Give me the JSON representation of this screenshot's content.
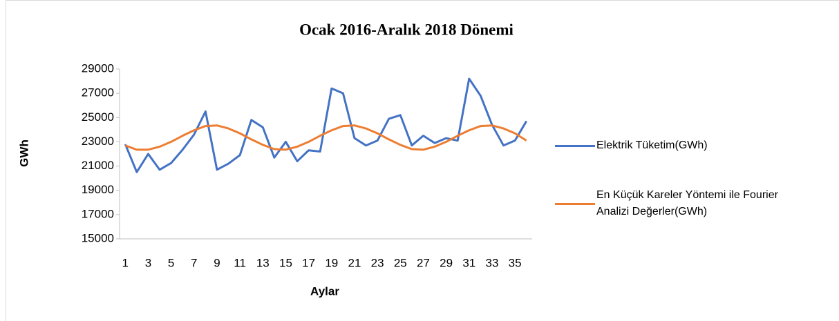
{
  "chart_data": {
    "type": "line",
    "title": "Ocak 2016-Aralık 2018 Dönemi",
    "x_label": "Aylar",
    "y_label": "GWh",
    "categories": [
      "1",
      null,
      "3",
      null,
      "5",
      null,
      "7",
      null,
      "9",
      null,
      "11",
      null,
      "13",
      null,
      "15",
      null,
      "17",
      null,
      "19",
      null,
      "21",
      null,
      "23",
      null,
      "25",
      null,
      "27",
      null,
      "29",
      null,
      "31",
      null,
      "33",
      null,
      "35",
      null
    ],
    "series": [
      {
        "name": "Elektrik Tüketim(GWh)",
        "color": "#4472c4",
        "values": [
          22800,
          20500,
          22000,
          20700,
          21250,
          22350,
          23600,
          25500,
          20700,
          21200,
          21900,
          24800,
          24200,
          21700,
          23000,
          21400,
          22300,
          22200,
          27400,
          27000,
          23300,
          22700,
          23100,
          24900,
          25200,
          22700,
          23500,
          22900,
          23300,
          23100,
          28200,
          26800,
          24400,
          22700,
          23100,
          24700
        ]
      },
      {
        "name": "En Küçük Kareler Yöntemi ile Fourier Analizi Değerler(GWh)",
        "color": "#ed7d31",
        "values": [
          22700,
          22350,
          22350,
          22600,
          23000,
          23500,
          23950,
          24300,
          24350,
          24100,
          23700,
          23200,
          22750,
          22400,
          22350,
          22600,
          23000,
          23500,
          23950,
          24300,
          24350,
          24100,
          23700,
          23200,
          22750,
          22400,
          22350,
          22600,
          23000,
          23500,
          23950,
          24300,
          24350,
          24100,
          23700,
          23100
        ]
      }
    ],
    "ylim": [
      15000,
      29000
    ],
    "yticks": [
      15000,
      17000,
      19000,
      21000,
      23000,
      25000,
      27000,
      29000
    ],
    "legend": "right"
  }
}
